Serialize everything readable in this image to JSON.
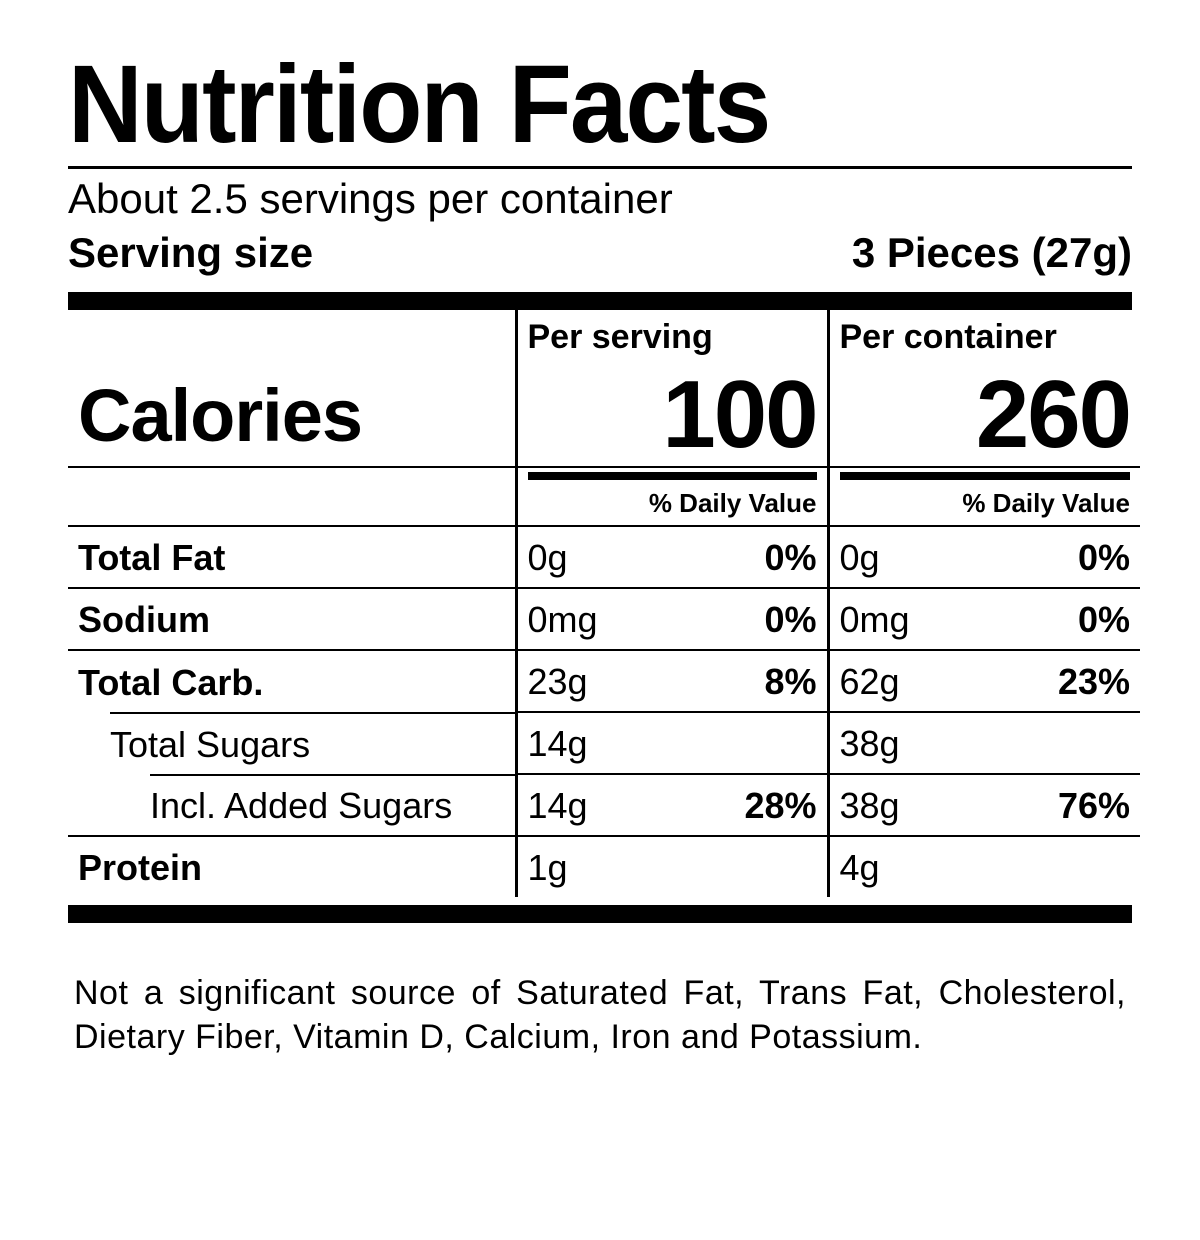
{
  "title": "Nutrition Facts",
  "servings_per_container": "About 2.5 servings per container",
  "serving_size_label": "Serving size",
  "serving_size_value": "3 Pieces  (27g)",
  "column_headers": {
    "per_serving": "Per serving",
    "per_container": "Per container"
  },
  "calories": {
    "label": "Calories",
    "per_serving": "100",
    "per_container": "260"
  },
  "dv_header": "% Daily Value",
  "nutrients": [
    {
      "name": "Total Fat",
      "bold": true,
      "indent": 0,
      "serv_val": "0g",
      "serv_dv": "0%",
      "cont_val": "0g",
      "cont_dv": "0%"
    },
    {
      "name": "Sodium",
      "bold": true,
      "indent": 0,
      "serv_val": "0mg",
      "serv_dv": "0%",
      "cont_val": "0mg",
      "cont_dv": "0%"
    },
    {
      "name": "Total Carb.",
      "bold": true,
      "indent": 0,
      "serv_val": "23g",
      "serv_dv": "8%",
      "cont_val": "62g",
      "cont_dv": "23%"
    },
    {
      "name": "Total Sugars",
      "bold": false,
      "indent": 1,
      "serv_val": "14g",
      "serv_dv": "",
      "cont_val": "38g",
      "cont_dv": ""
    },
    {
      "name": "Incl. Added Sugars",
      "bold": false,
      "indent": 2,
      "serv_val": "14g",
      "serv_dv": "28%",
      "cont_val": "38g",
      "cont_dv": "76%"
    },
    {
      "name": "Protein",
      "bold": true,
      "indent": 0,
      "serv_val": "1g",
      "serv_dv": "",
      "cont_val": "4g",
      "cont_dv": ""
    }
  ],
  "footnote": "Not a significant source of Saturated Fat, Trans Fat, Cholesterol, Dietary Fiber, Vitamin D, Calcium, Iron and Potassium."
}
